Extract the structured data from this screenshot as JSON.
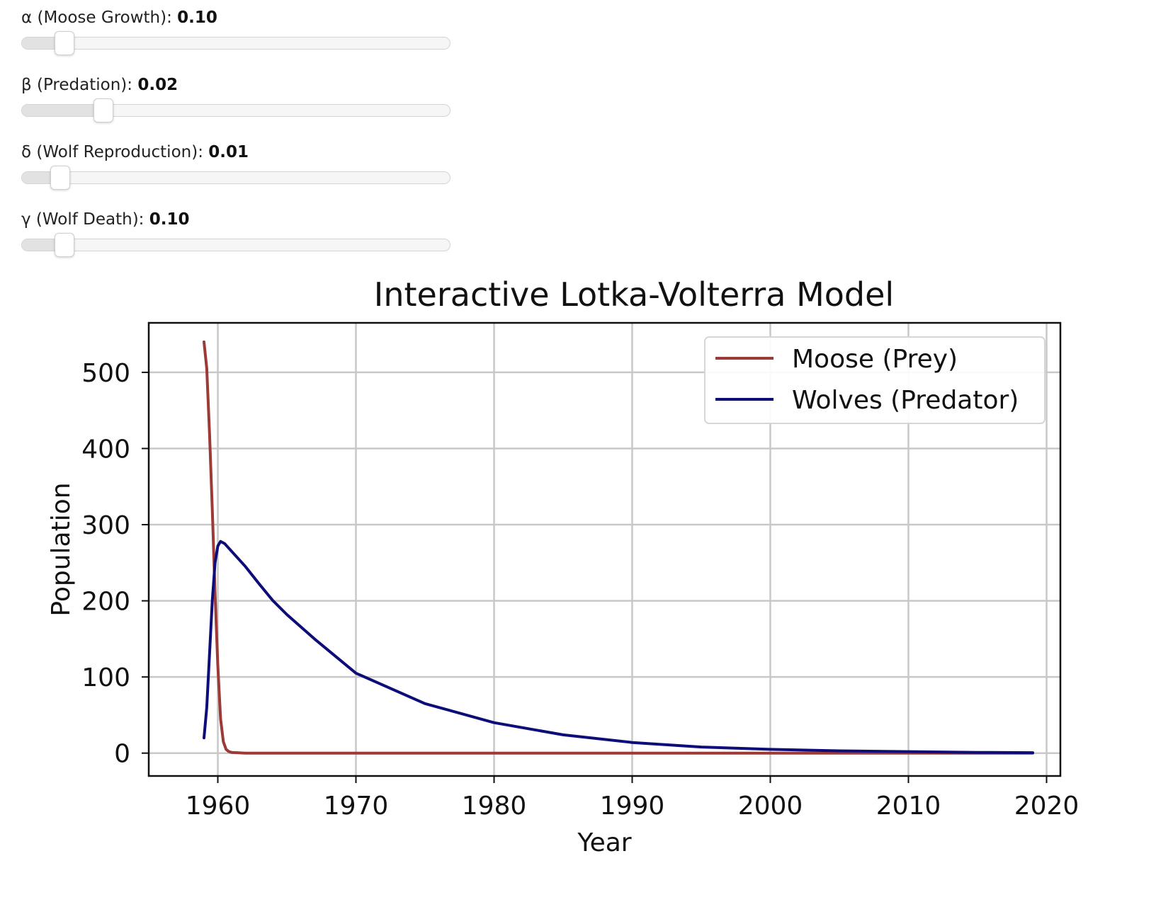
{
  "sliders": [
    {
      "id": "alpha",
      "label": "α (Moose Growth): ",
      "value": "0.10",
      "fraction": 0.1
    },
    {
      "id": "beta",
      "label": "β (Predation): ",
      "value": "0.02",
      "fraction": 0.19
    },
    {
      "id": "delta",
      "label": "δ (Wolf Reproduction): ",
      "value": "0.01",
      "fraction": 0.09
    },
    {
      "id": "gamma",
      "label": "γ (Wolf Death): ",
      "value": "0.10",
      "fraction": 0.1
    }
  ],
  "chart_data": {
    "type": "line",
    "title": "Interactive Lotka-Volterra Model",
    "xlabel": "Year",
    "ylabel": "Population",
    "xlim": [
      1955,
      2021
    ],
    "ylim": [
      -30,
      565
    ],
    "xticks": [
      1960,
      1970,
      1980,
      1990,
      2000,
      2010,
      2020
    ],
    "yticks": [
      0,
      100,
      200,
      300,
      400,
      500
    ],
    "grid": true,
    "legend_position": "top-right",
    "series": [
      {
        "name": "Moose (Prey)",
        "color": "#9b3a36",
        "x": [
          1959,
          1959.2,
          1959.4,
          1959.6,
          1959.8,
          1960,
          1960.2,
          1960.4,
          1960.6,
          1960.8,
          1961,
          1962,
          1970,
          1980,
          1990,
          2000,
          2010,
          2019
        ],
        "y": [
          540,
          505,
          420,
          320,
          210,
          115,
          45,
          15,
          5,
          2,
          1,
          0,
          0,
          0,
          0,
          0,
          0,
          0
        ]
      },
      {
        "name": "Wolves (Predator)",
        "color": "#0d0d7a",
        "x": [
          1959,
          1959.2,
          1959.4,
          1959.6,
          1959.8,
          1960,
          1960.2,
          1960.5,
          1961,
          1962,
          1963,
          1964,
          1965,
          1967,
          1970,
          1975,
          1980,
          1985,
          1990,
          1995,
          2000,
          2005,
          2010,
          2015,
          2019
        ],
        "y": [
          20,
          60,
          130,
          200,
          250,
          272,
          278,
          275,
          265,
          245,
          222,
          200,
          182,
          150,
          105,
          65,
          40,
          24,
          14,
          8,
          5,
          3,
          2,
          1,
          0.6
        ]
      }
    ]
  }
}
